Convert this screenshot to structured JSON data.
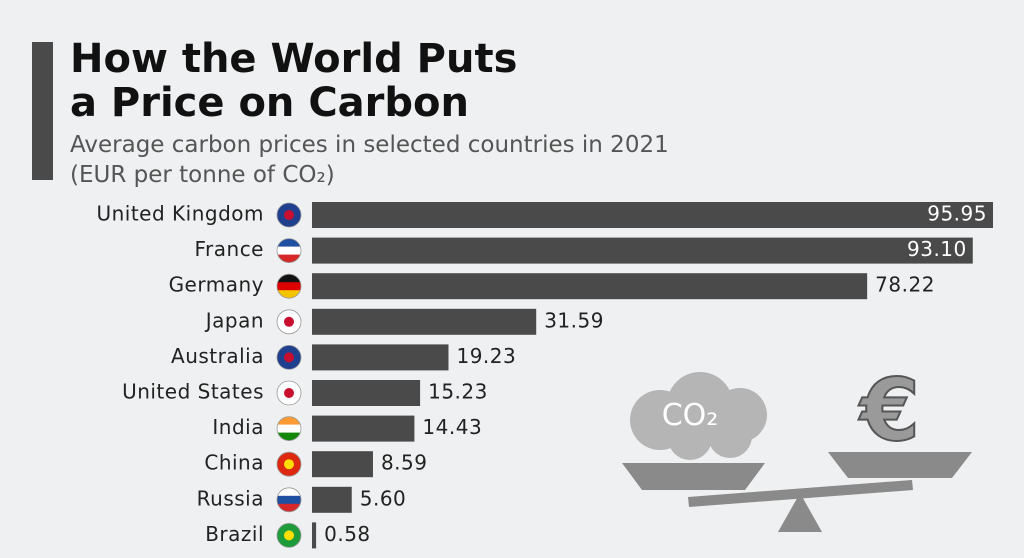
{
  "chart_data": {
    "type": "bar",
    "orientation": "horizontal",
    "title": "How the World Puts a Price on Carbon",
    "subtitle": "Average carbon prices in selected countries in 2021 (EUR per tonne of CO₂)",
    "categories": [
      "United Kingdom",
      "France",
      "Germany",
      "Japan",
      "Australia",
      "United States",
      "India",
      "China",
      "Russia",
      "Brazil"
    ],
    "values": [
      95.95,
      93.1,
      78.22,
      31.59,
      19.23,
      15.23,
      14.43,
      8.59,
      5.6,
      0.58
    ],
    "value_labels": [
      "95.95",
      "93.10",
      "78.22",
      "31.59",
      "19.23",
      "15.23",
      "14.43",
      "8.59",
      "5.60",
      "0.58"
    ],
    "color": "#4a4a4a"
  },
  "illustration": {
    "cloud_label": "CO₂",
    "symbol": "€"
  }
}
